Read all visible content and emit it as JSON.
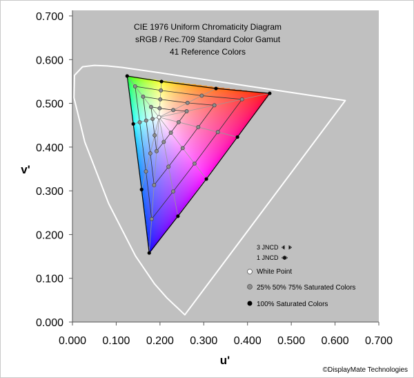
{
  "chart_data": {
    "type": "scatter",
    "title": [
      "CIE 1976 Uniform Chromaticity Diagram",
      "sRGB / Rec.709 Standard Color Gamut",
      "41 Reference Colors"
    ],
    "xlabel": "u'",
    "ylabel": "v'",
    "xlim": [
      0,
      0.7
    ],
    "ylim": [
      0,
      0.7
    ],
    "xticks": [
      "0.000",
      "0.100",
      "0.200",
      "0.300",
      "0.400",
      "0.500",
      "0.600",
      "0.700"
    ],
    "yticks": [
      "0.000",
      "0.100",
      "0.200",
      "0.300",
      "0.400",
      "0.500",
      "0.600",
      "0.700"
    ],
    "grid": false,
    "legend_placement": "bottom-right",
    "gamut_primaries": {
      "red": [
        0.4507,
        0.5229
      ],
      "green": [
        0.125,
        0.5625
      ],
      "blue": [
        0.1754,
        0.1579
      ]
    },
    "white_point": [
      0.1978,
      0.4683
    ],
    "saturated_colors_100": [
      [
        0.4507,
        0.5229
      ],
      [
        0.377,
        0.423
      ],
      [
        0.306,
        0.327
      ],
      [
        0.241,
        0.242
      ],
      [
        0.1754,
        0.1579
      ],
      [
        0.158,
        0.303
      ],
      [
        0.139,
        0.453
      ],
      [
        0.125,
        0.5625
      ],
      [
        0.2035,
        0.55
      ],
      [
        0.328,
        0.534
      ]
    ],
    "saturation_levels": [
      0.25,
      0.5,
      0.75
    ],
    "spectral_locus": [
      [
        0.2568,
        0.0165
      ],
      [
        0.216,
        0.055
      ],
      [
        0.1877,
        0.0871
      ],
      [
        0.1441,
        0.151
      ],
      [
        0.0828,
        0.2708
      ],
      [
        0.0282,
        0.4117
      ],
      [
        0.0035,
        0.513
      ],
      [
        0.0046,
        0.564
      ],
      [
        0.0231,
        0.5837
      ],
      [
        0.0501,
        0.5868
      ],
      [
        0.0792,
        0.5857
      ],
      [
        0.1127,
        0.5822
      ],
      [
        0.1531,
        0.5766
      ],
      [
        0.2026,
        0.5694
      ],
      [
        0.2623,
        0.5604
      ],
      [
        0.3315,
        0.5501
      ],
      [
        0.4035,
        0.5393
      ],
      [
        0.5203,
        0.5219
      ],
      [
        0.6234,
        0.5065
      ]
    ],
    "legend": {
      "jncd3": "3 JNCD",
      "jncd1": "1 JNCD",
      "white": "White Point",
      "partial": "25% 50% 75% Saturated Colors",
      "full": "100% Saturated Colors"
    },
    "colors": {
      "plot_bg": "#c0c0c0",
      "locus": "#ffffff",
      "saturated": "#000000",
      "partial": "#8c8c8c",
      "white": "#ffffff"
    }
  },
  "copyright": "©DisplayMate Technologies"
}
